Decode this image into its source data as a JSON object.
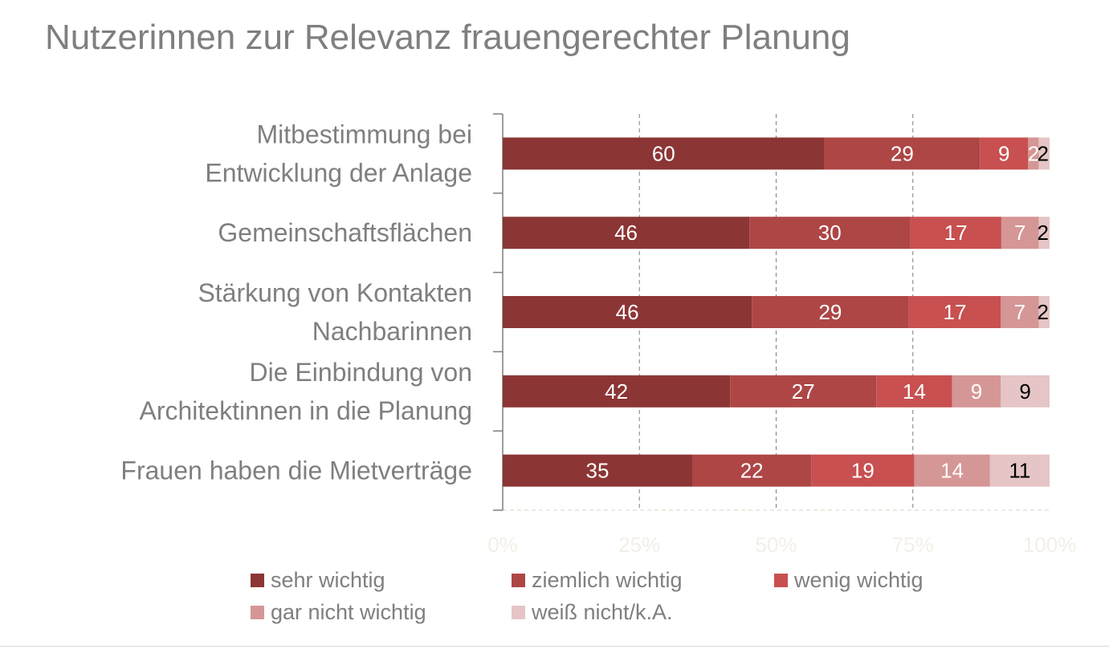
{
  "chart_data": {
    "type": "bar",
    "orientation": "horizontal",
    "stacked": "percent",
    "title": "Nutzerinnen zur Relevanz frauengerechter Planung",
    "categories": [
      [
        "Mitbestimmung bei",
        "Entwicklung der Anlage"
      ],
      [
        "Gemeinschaftsflächen"
      ],
      [
        "Stärkung von Kontakten",
        "Nachbarinnen"
      ],
      [
        "Die Einbindung von",
        "Architektinnen in die Planung"
      ],
      [
        "Frauen haben die Mietverträge"
      ]
    ],
    "series": [
      {
        "name": "sehr wichtig",
        "color": "#8c3535",
        "label_color": "#ffffff",
        "values": [
          60,
          46,
          46,
          42,
          35
        ]
      },
      {
        "name": "ziemlich wichtig",
        "color": "#ae4646",
        "label_color": "#ffffff",
        "values": [
          29,
          30,
          29,
          27,
          22
        ]
      },
      {
        "name": "wenig wichtig",
        "color": "#c85050",
        "label_color": "#ffffff",
        "values": [
          9,
          17,
          17,
          14,
          19
        ]
      },
      {
        "name": "gar nicht wichtig",
        "color": "#d59696",
        "label_color": "#ffffff",
        "values": [
          2,
          7,
          7,
          9,
          14
        ]
      },
      {
        "name": "weiß nicht/k.A.",
        "color": "#e5c5c5",
        "label_color": "#000000",
        "values": [
          2,
          2,
          2,
          9,
          11
        ]
      }
    ],
    "x_ticks": [
      "0%",
      "25%",
      "50%",
      "75%",
      "100%"
    ],
    "xlim": [
      0,
      100
    ],
    "grid": true,
    "legend_position": "bottom"
  }
}
